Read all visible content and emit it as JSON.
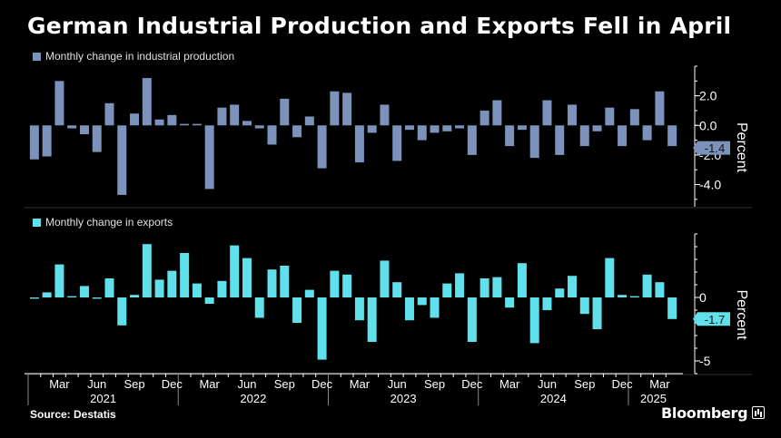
{
  "title": "German Industrial Production and Exports Fell in April",
  "source": "Source: Destatis",
  "brand": "Bloomberg",
  "colors": {
    "production": "#7b92ba",
    "exports": "#5fe0ea",
    "background": "#000000",
    "axis": "#ffffff"
  },
  "chart_data": [
    {
      "type": "bar",
      "legend": "Monthly change in industrial production",
      "ylabel": "Percent",
      "ylim": [
        -5.5,
        4.0
      ],
      "yticks": [
        2.0,
        0.0,
        -2.0,
        -4.0
      ],
      "ytick_labels": [
        "2.0",
        "0.0",
        "-2.0",
        "-4.0"
      ],
      "last_value_label": "-1.4",
      "x": [
        "2021-01",
        "2021-02",
        "2021-03",
        "2021-04",
        "2021-05",
        "2021-06",
        "2021-07",
        "2021-08",
        "2021-09",
        "2021-10",
        "2021-11",
        "2021-12",
        "2022-01",
        "2022-02",
        "2022-03",
        "2022-04",
        "2022-05",
        "2022-06",
        "2022-07",
        "2022-08",
        "2022-09",
        "2022-10",
        "2022-11",
        "2022-12",
        "2023-01",
        "2023-02",
        "2023-03",
        "2023-04",
        "2023-05",
        "2023-06",
        "2023-07",
        "2023-08",
        "2023-09",
        "2023-10",
        "2023-11",
        "2023-12",
        "2024-01",
        "2024-02",
        "2024-03",
        "2024-04",
        "2024-05",
        "2024-06",
        "2024-07",
        "2024-08",
        "2024-09",
        "2024-10",
        "2024-11",
        "2024-12",
        "2025-01",
        "2025-02",
        "2025-03",
        "2025-04"
      ],
      "values": [
        -2.3,
        -2.1,
        3.0,
        -0.2,
        -0.6,
        -1.8,
        1.5,
        -4.7,
        0.8,
        3.2,
        0.4,
        0.7,
        0.1,
        0.1,
        -4.3,
        1.2,
        1.4,
        0.3,
        -0.2,
        -1.3,
        1.8,
        -0.8,
        0.6,
        -2.9,
        2.3,
        2.2,
        -2.5,
        -0.5,
        1.4,
        -2.4,
        -0.3,
        -1.0,
        -0.5,
        -0.4,
        -0.2,
        -2.0,
        1.0,
        1.7,
        -1.4,
        -0.3,
        -2.2,
        1.7,
        -2.0,
        1.4,
        -1.4,
        -0.4,
        1.2,
        -1.4,
        1.1,
        -1.0,
        2.3,
        -1.4
      ]
    },
    {
      "type": "bar",
      "legend": "Monthly change in exports",
      "ylabel": "Percent",
      "ylim": [
        -6.0,
        5.0
      ],
      "yticks": [
        0,
        -5
      ],
      "ytick_labels": [
        "0",
        "-5"
      ],
      "last_value_label": "-1.7",
      "x": [
        "2021-01",
        "2021-02",
        "2021-03",
        "2021-04",
        "2021-05",
        "2021-06",
        "2021-07",
        "2021-08",
        "2021-09",
        "2021-10",
        "2021-11",
        "2021-12",
        "2022-01",
        "2022-02",
        "2022-03",
        "2022-04",
        "2022-05",
        "2022-06",
        "2022-07",
        "2022-08",
        "2022-09",
        "2022-10",
        "2022-11",
        "2022-12",
        "2023-01",
        "2023-02",
        "2023-03",
        "2023-04",
        "2023-05",
        "2023-06",
        "2023-07",
        "2023-08",
        "2023-09",
        "2023-10",
        "2023-11",
        "2023-12",
        "2024-01",
        "2024-02",
        "2024-03",
        "2024-04",
        "2024-05",
        "2024-06",
        "2024-07",
        "2024-08",
        "2024-09",
        "2024-10",
        "2024-11",
        "2024-12",
        "2025-01",
        "2025-02",
        "2025-03",
        "2025-04"
      ],
      "values": [
        -0.1,
        0.4,
        2.6,
        0.1,
        0.9,
        -0.1,
        1.5,
        -2.2,
        0.2,
        4.2,
        1.4,
        2.1,
        3.5,
        1.1,
        -0.5,
        1.3,
        4.1,
        3.1,
        -1.6,
        2.2,
        2.5,
        -2.0,
        0.6,
        -4.9,
        2.1,
        1.8,
        -1.8,
        -3.5,
        2.9,
        1.2,
        -1.8,
        -0.6,
        -1.6,
        1.1,
        1.9,
        -3.5,
        1.5,
        1.6,
        -0.8,
        2.7,
        -3.6,
        -1.0,
        0.7,
        1.7,
        -1.3,
        -2.5,
        3.1,
        0.2,
        0.1,
        1.8,
        1.2,
        -1.7
      ]
    }
  ],
  "x_axis": {
    "month_labels": [
      "Mar",
      "Jun",
      "Sep",
      "Dec",
      "Mar",
      "Jun",
      "Sep",
      "Dec",
      "Mar",
      "Jun",
      "Sep",
      "Dec",
      "Mar",
      "Jun",
      "Sep",
      "Dec",
      "Mar"
    ],
    "year_labels": [
      "2021",
      "2022",
      "2023",
      "2024",
      "2025"
    ]
  }
}
